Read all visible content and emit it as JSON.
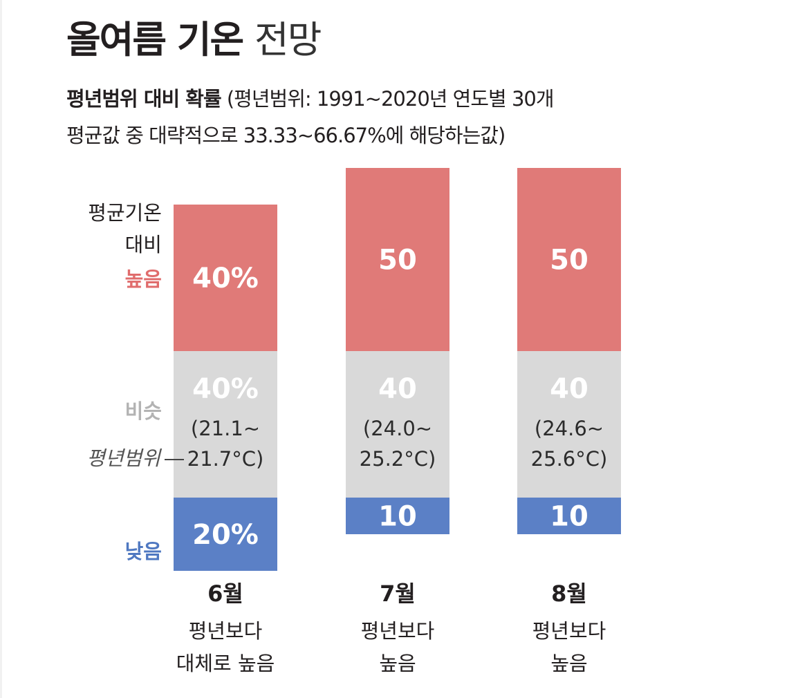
{
  "title_bold": "올여름 기온",
  "title_light": "전망",
  "subtitle_bold": "평년범위 대비 확률",
  "subtitle_rest": "(평년범위: 1991~2020년 연도별 30개",
  "subtitle_line2": "평균값 중 대략적으로 33.33~66.67%에 해당하는값)",
  "colors": {
    "high": "#e07a78",
    "similar": "#d9d9d9",
    "low": "#5b80c6",
    "high_text": "#e06c6c",
    "similar_text": "#b3b3b3",
    "low_text": "#4f78c1"
  },
  "chart_data": {
    "type": "bar",
    "stacked": true,
    "title": "올여름 기온 전망",
    "subtitle": "평년범위 대비 확률",
    "categories": [
      "6월",
      "7월",
      "8월"
    ],
    "category_notes": [
      [
        "평년보다",
        "대체로 높음"
      ],
      [
        "평년보다",
        "높음"
      ],
      [
        "평년보다",
        "높음"
      ]
    ],
    "series": [
      {
        "name": "낮음",
        "values": [
          20,
          10,
          10
        ],
        "labels": [
          "20%",
          "10",
          "10"
        ]
      },
      {
        "name": "비슷",
        "values": [
          40,
          40,
          40
        ],
        "labels": [
          "40%",
          "40",
          "40"
        ]
      },
      {
        "name": "높음",
        "values": [
          40,
          50,
          50
        ],
        "labels": [
          "40%",
          "50",
          "50"
        ]
      }
    ],
    "normal_range": [
      "(21.1~ 21.7°C)",
      "(24.0~ 25.2°C)",
      "(24.6~ 25.6°C)"
    ],
    "normal_range_lines": [
      [
        "(21.1~",
        "21.7°C)"
      ],
      [
        "(24.0~",
        "25.2°C)"
      ],
      [
        "(24.6~",
        "25.6°C)"
      ]
    ],
    "row_labels": {
      "high": [
        "평균기온",
        "대비",
        "높음"
      ],
      "similar": "비슷",
      "low": "낮음",
      "range_pointer": "평년범위"
    },
    "unit": "%",
    "ylim": [
      0,
      100
    ],
    "legend": "none",
    "grid": false
  }
}
